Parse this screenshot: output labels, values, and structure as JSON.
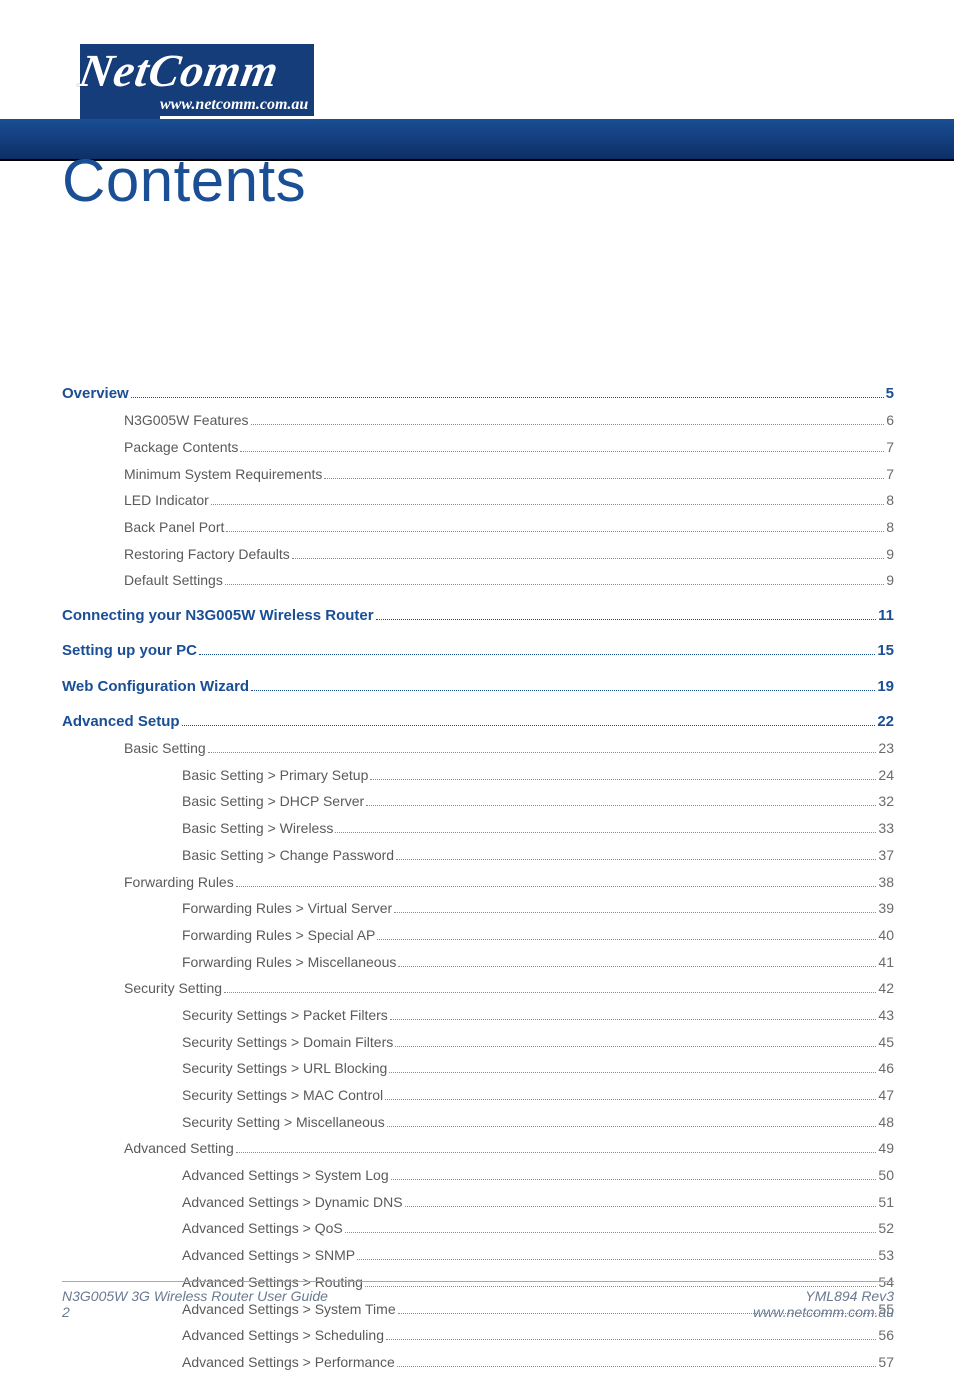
{
  "brand": {
    "name": "NetComm",
    "reg": "®",
    "url": "www.netcomm.com.au"
  },
  "title": "Contents",
  "colors": {
    "brand_blue": "#1a4e95",
    "band_top": "#1a4e95",
    "band_bottom": "#0d2f66",
    "body_text": "#5a5a5a",
    "dot_color": "#8a8a8a",
    "footer_text": "#6a7a90",
    "footer_rule": "#9aaac4",
    "white": "#ffffff"
  },
  "typography": {
    "title_fontsize_pt": 45,
    "body_fontsize_pt": 10.5,
    "section_fontsize_pt": 11.2,
    "font_family": "Helvetica"
  },
  "toc": [
    {
      "level": 0,
      "label": "Overview",
      "page": "5"
    },
    {
      "level": 1,
      "label": "N3G005W Features",
      "page": "6"
    },
    {
      "level": 1,
      "label": "Package Contents",
      "page": "7"
    },
    {
      "level": 1,
      "label": "Minimum System Requirements",
      "page": "7"
    },
    {
      "level": 1,
      "label": "LED Indicator",
      "page": "8"
    },
    {
      "level": 1,
      "label": "Back Panel Port",
      "page": "8"
    },
    {
      "level": 1,
      "label": "Restoring Factory Defaults",
      "page": "9"
    },
    {
      "level": 1,
      "label": "Default Settings",
      "page": "9"
    },
    {
      "level": 0,
      "label": "Connecting your N3G005W Wireless Router",
      "page": "11"
    },
    {
      "level": 0,
      "label": "Setting up your PC",
      "page": "15"
    },
    {
      "level": 0,
      "label": "Web Configuration Wizard ",
      "page": "19"
    },
    {
      "level": 0,
      "label": "Advanced Setup",
      "page": "22"
    },
    {
      "level": 1,
      "label": "Basic Setting",
      "page": "23"
    },
    {
      "level": 2,
      "label": "Basic Setting > Primary Setup",
      "page": "24"
    },
    {
      "level": 2,
      "label": "Basic Setting > DHCP Server",
      "page": "32"
    },
    {
      "level": 2,
      "label": "Basic Setting > Wireless",
      "page": "33"
    },
    {
      "level": 2,
      "label": "Basic Setting > Change Password",
      "page": "37"
    },
    {
      "level": 1,
      "label": "Forwarding Rules",
      "page": "38"
    },
    {
      "level": 2,
      "label": "Forwarding Rules > Virtual Server",
      "page": "39"
    },
    {
      "level": 2,
      "label": "Forwarding Rules > Special AP",
      "page": "40"
    },
    {
      "level": 2,
      "label": "Forwarding Rules > Miscellaneous",
      "page": "41"
    },
    {
      "level": 1,
      "label": "Security Setting",
      "page": "42"
    },
    {
      "level": 2,
      "label": "Security Settings > Packet Filters",
      "page": "43"
    },
    {
      "level": 2,
      "label": "Security Settings > Domain Filters",
      "page": "45"
    },
    {
      "level": 2,
      "label": "Security Settings > URL Blocking",
      "page": "46"
    },
    {
      "level": 2,
      "label": "Security Settings > MAC Control",
      "page": "47"
    },
    {
      "level": 2,
      "label": "Security Setting > Miscellaneous",
      "page": "48"
    },
    {
      "level": 1,
      "label": "Advanced Setting",
      "page": "49"
    },
    {
      "level": 2,
      "label": "Advanced Settings > System Log",
      "page": "50"
    },
    {
      "level": 2,
      "label": "Advanced Settings > Dynamic DNS",
      "page": "51"
    },
    {
      "level": 2,
      "label": "Advanced Settings > QoS",
      "page": "52"
    },
    {
      "level": 2,
      "label": "Advanced Settings > SNMP",
      "page": "53"
    },
    {
      "level": 2,
      "label": "Advanced Settings > Routing",
      "page": "54"
    },
    {
      "level": 2,
      "label": "Advanced Settings > System Time",
      "page": "55"
    },
    {
      "level": 2,
      "label": "Advanced Settings > Scheduling",
      "page": "56"
    },
    {
      "level": 2,
      "label": "Advanced Settings > Performance",
      "page": "57"
    }
  ],
  "footer": {
    "left_line1": "N3G005W 3G Wireless Router User Guide",
    "left_line2": "2",
    "right_line1": "YML894 Rev3",
    "right_line2": "www.netcomm.com.au"
  }
}
